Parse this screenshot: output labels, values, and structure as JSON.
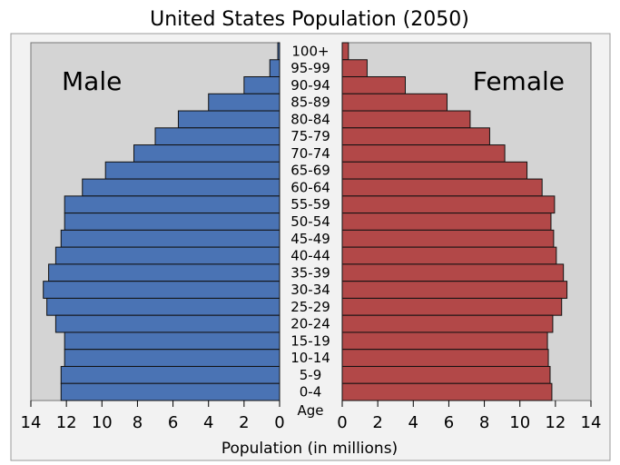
{
  "chart_data": {
    "type": "bar",
    "orientation": "horizontal-pyramid",
    "title": "United States Population (2050)",
    "xlabel": "Population (in millions)",
    "ylabel": "Age",
    "xlim": [
      0,
      14
    ],
    "xticks": [
      0,
      2,
      4,
      6,
      8,
      10,
      12,
      14
    ],
    "categories": [
      "100+",
      "95-99",
      "90-94",
      "85-89",
      "80-84",
      "75-79",
      "70-74",
      "65-69",
      "60-64",
      "55-59",
      "50-54",
      "45-49",
      "40-44",
      "35-39",
      "30-34",
      "25-29",
      "20-24",
      "15-19",
      "10-14",
      "5-9",
      "0-4"
    ],
    "series": [
      {
        "name": "Male",
        "color": "#4a73b4",
        "side": "left",
        "values": [
          0.1,
          0.55,
          2.0,
          4.0,
          5.7,
          7.0,
          8.2,
          9.8,
          11.1,
          12.1,
          12.1,
          12.3,
          12.6,
          13.0,
          13.3,
          13.1,
          12.6,
          12.1,
          12.1,
          12.3,
          12.3
        ]
      },
      {
        "name": "Female",
        "color": "#b24848",
        "side": "right",
        "values": [
          0.35,
          1.4,
          3.55,
          5.9,
          7.2,
          8.3,
          9.15,
          10.4,
          11.25,
          11.95,
          11.75,
          11.9,
          12.05,
          12.45,
          12.65,
          12.35,
          11.85,
          11.55,
          11.6,
          11.7,
          11.8
        ]
      }
    ],
    "panel_background": "#d4d4d4"
  }
}
